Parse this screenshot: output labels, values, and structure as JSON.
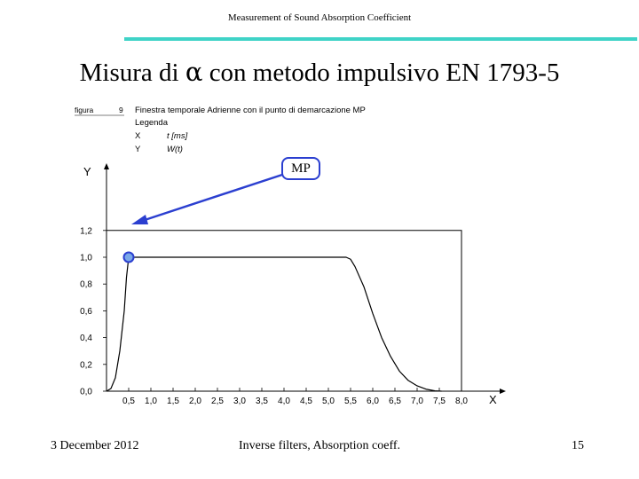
{
  "header": {
    "title": "Measurement of Sound Absorption Coefficient"
  },
  "slide": {
    "title_prefix": "Misura di ",
    "title_symbol": "α",
    "title_suffix": " con metodo impulsivo EN 1793-5"
  },
  "figure": {
    "figure_label": "figura",
    "figure_number": "9",
    "caption": "Finestra temporale Adrienne con il punto di demarcazione MP",
    "legend_heading": "Legenda",
    "legend": [
      {
        "axis": "X",
        "desc": "t [ms]"
      },
      {
        "axis": "Y",
        "desc": "W(t)"
      }
    ],
    "callout_label": "MP",
    "y_axis_label": "Y",
    "x_axis_label": "X"
  },
  "chart_data": {
    "type": "line",
    "xlabel": "X",
    "ylabel": "Y",
    "xlim": [
      0,
      8.5
    ],
    "ylim": [
      0,
      1.2
    ],
    "x_ticks": [
      "0,5",
      "1,0",
      "1,5",
      "2,0",
      "2,5",
      "3,0",
      "3,5",
      "4,0",
      "4,5",
      "5,0",
      "5,5",
      "6,0",
      "6,5",
      "7,0",
      "7,5",
      "8,0"
    ],
    "y_ticks": [
      "0,0",
      "0,2",
      "0,4",
      "0,6",
      "0,8",
      "1,0",
      "1,2"
    ],
    "series": [
      {
        "x": [
          0.0,
          0.1,
          0.2,
          0.3,
          0.4,
          0.45,
          0.5,
          5.4,
          5.5,
          5.6,
          5.8,
          6.0,
          6.2,
          6.4,
          6.6,
          6.8,
          7.0,
          7.2,
          7.4,
          7.55
        ],
        "y": [
          0.0,
          0.02,
          0.1,
          0.3,
          0.6,
          0.85,
          1.0,
          1.0,
          0.985,
          0.93,
          0.78,
          0.58,
          0.4,
          0.26,
          0.15,
          0.08,
          0.04,
          0.015,
          0.003,
          0.0
        ]
      }
    ],
    "box": {
      "x": [
        0,
        8.0
      ],
      "y": [
        0,
        1.2
      ]
    },
    "marker": {
      "x": 0.5,
      "y": 1.0,
      "label": "MP",
      "color": "#2b3fd0"
    },
    "grid": false
  },
  "footer": {
    "date": "3 December 2012",
    "center": "Inverse filters, Absorption coeff.",
    "page": "15"
  }
}
